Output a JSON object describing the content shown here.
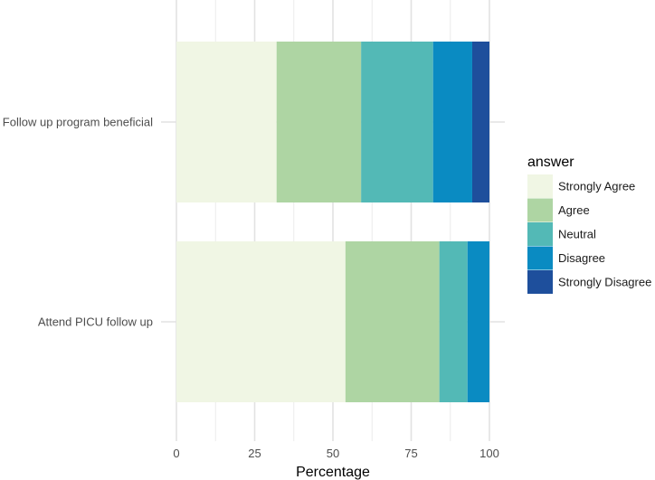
{
  "chart_data": {
    "type": "bar",
    "orientation": "horizontal",
    "stacked": true,
    "title": "",
    "xlabel": "Percentage",
    "ylabel": "",
    "xlim": [
      0,
      100
    ],
    "xticks": [
      0,
      25,
      50,
      75,
      100
    ],
    "grid": true,
    "categories": [
      "Follow up program beneficial",
      "Attend PICU follow up"
    ],
    "series": [
      {
        "name": "Strongly Agree",
        "color": "#f0f6e4",
        "values": [
          32,
          54
        ]
      },
      {
        "name": "Agree",
        "color": "#aed5a3",
        "values": [
          27,
          30
        ]
      },
      {
        "name": "Neutral",
        "color": "#53b9b6",
        "values": [
          23,
          9
        ]
      },
      {
        "name": "Disagree",
        "color": "#0a8bc2",
        "values": [
          12.5,
          7
        ]
      },
      {
        "name": "Strongly Disagree",
        "color": "#1e4f9c",
        "values": [
          5.5,
          0
        ]
      }
    ],
    "legend": {
      "title": "answer",
      "placement": "right"
    }
  }
}
